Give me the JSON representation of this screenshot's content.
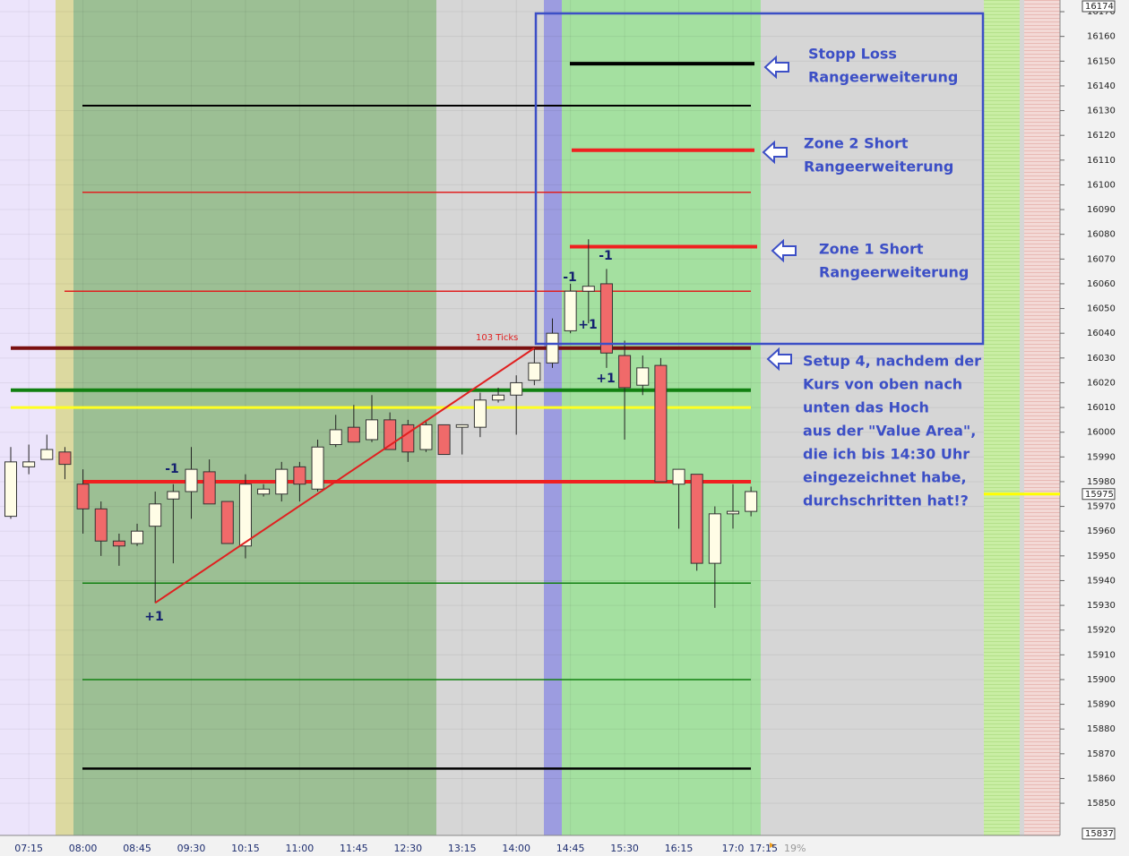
{
  "chart_data": {
    "type": "candlestick",
    "categories": [
      null,
      "07:15",
      null,
      null,
      "08:00",
      null,
      null,
      "08:45",
      null,
      null,
      "09:30",
      null,
      null,
      "10:15",
      null,
      null,
      "11:00",
      null,
      null,
      "11:45",
      null,
      null,
      "12:30",
      null,
      null,
      "13:15",
      null,
      null,
      "14:00",
      null,
      null,
      "14:45",
      null,
      null,
      "15:30",
      null,
      null,
      "16:15",
      null,
      null,
      "17:0",
      "17:15"
    ],
    "open": [
      15966,
      15986,
      15989,
      15992,
      15979,
      15969,
      15956,
      15955,
      15962,
      15973,
      15976,
      15984,
      15972,
      15954,
      15975,
      15975,
      15986,
      15977,
      15995,
      16002,
      15997,
      16005,
      16003,
      15993,
      16003,
      16002,
      16002,
      16013,
      16015,
      16021,
      16028,
      16041,
      16057,
      16060,
      16031,
      16019,
      16027,
      15979,
      15983,
      15947,
      15967,
      15968
    ],
    "high": [
      15994,
      15995,
      15999,
      15994,
      15985,
      15972,
      15959,
      15963,
      15976,
      15979,
      15994,
      15989,
      15972,
      15983,
      15979,
      15988,
      15988,
      15997,
      16007,
      16011,
      16015,
      16008,
      16005,
      16005,
      16003,
      16003,
      16016,
      16018,
      16023,
      16034,
      16046,
      16060,
      16078,
      16066,
      16037,
      16031,
      16030,
      15985,
      15983,
      15970,
      15979,
      15978
    ],
    "low": [
      15965,
      15983,
      15989,
      15981,
      15959,
      15950,
      15946,
      15954,
      15931,
      15947,
      15965,
      15971,
      15955,
      15949,
      15974,
      15972,
      15972,
      15976,
      15994,
      15996,
      15996,
      15993,
      15988,
      15992,
      15991,
      15991,
      15998,
      16012,
      15999,
      16019,
      16026,
      16040,
      16044,
      16026,
      15997,
      16015,
      15980,
      15961,
      15944,
      15929,
      15961,
      15966
    ],
    "close": [
      15988,
      15988,
      15993,
      15987,
      15969,
      15956,
      15954,
      15960,
      15971,
      15976,
      15985,
      15971,
      15955,
      15979,
      15977,
      15985,
      15979,
      15994,
      16001,
      15996,
      16005,
      15993,
      15992,
      16003,
      15991,
      16003,
      16013,
      16015,
      16020,
      16028,
      16040,
      16057,
      16059,
      16032,
      16018,
      16026,
      15980,
      15985,
      15947,
      15967,
      15968,
      15976
    ],
    "up_color": "#fffde6",
    "down_color": "#f06a6a",
    "ylim": [
      15837,
      16174
    ],
    "yticks": [
      15850,
      15860,
      15870,
      15880,
      15890,
      15900,
      15910,
      15920,
      15930,
      15940,
      15950,
      15960,
      15970,
      15980,
      15990,
      16000,
      16010,
      16020,
      16030,
      16040,
      16050,
      16060,
      16070,
      16080,
      16090,
      16100,
      16110,
      16120,
      16130,
      16140,
      16150,
      16160,
      16170
    ],
    "current_price": 15975,
    "levels": [
      {
        "value": 16132,
        "color": "#000000",
        "width": 2
      },
      {
        "value": 16097,
        "color": "#e02020",
        "width": 1.5
      },
      {
        "value": 16057,
        "color": "#e02020",
        "width": 1.5
      },
      {
        "value": 16034,
        "color": "#7a1010",
        "width": 4
      },
      {
        "value": 16017,
        "color": "#118011",
        "width": 4
      },
      {
        "value": 16010,
        "color": "#ffff20",
        "width": 3
      },
      {
        "value": 15980,
        "color": "#f02020",
        "width": 4
      },
      {
        "value": 15939,
        "color": "#118011",
        "width": 1.5
      },
      {
        "value": 15900,
        "color": "#118011",
        "width": 1.5
      },
      {
        "value": 15864,
        "color": "#000000",
        "width": 2.5
      },
      {
        "value": 16149,
        "color": "#000000",
        "width": 4
      },
      {
        "value": 16114,
        "color": "#f02020",
        "width": 4
      },
      {
        "value": 16075,
        "color": "#f02020",
        "width": 4
      }
    ],
    "trendline": {
      "values": [
        15931,
        16034
      ],
      "label": "103 Ticks"
    },
    "signals": [
      "-1",
      "+1",
      "-1",
      "+1",
      "-1",
      "+1"
    ],
    "progress": "19%",
    "notes": [
      [
        "Stopp Loss",
        "Rangeerweiterung"
      ],
      [
        "Zone 2 Short",
        "Rangeerweiterung"
      ],
      [
        "Zone 1 Short",
        "Rangeerweiterung"
      ],
      [
        "Setup 4, nachdem der",
        "Kurs von oben nach",
        "unten das Hoch",
        "aus der \"Value Area\",",
        "die ich bis 14:30 Uhr",
        "eingezeichnet habe,",
        "durchschritten hat!?"
      ]
    ]
  }
}
